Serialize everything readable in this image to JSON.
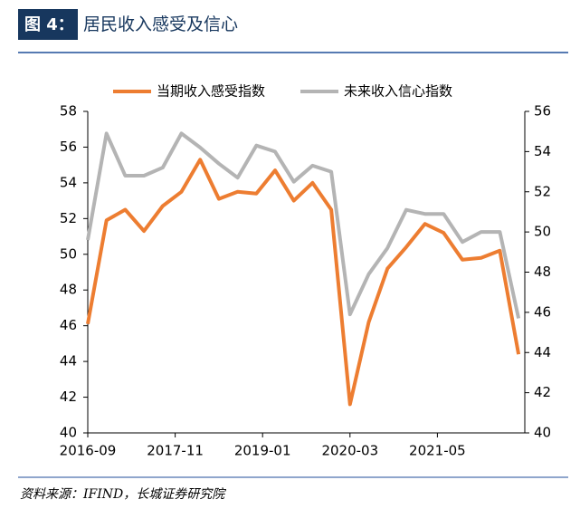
{
  "header": {
    "figure_label": "图 4：",
    "title": "居民收入感受及信心"
  },
  "chart_data": {
    "type": "line",
    "x": [
      "2016-09",
      "2016-12",
      "2017-03",
      "2017-06",
      "2017-09",
      "2017-12",
      "2018-03",
      "2018-06",
      "2018-09",
      "2018-12",
      "2019-03",
      "2019-06",
      "2019-09",
      "2019-12",
      "2020-03",
      "2020-06",
      "2020-09",
      "2020-12",
      "2021-03",
      "2021-06",
      "2021-09",
      "2021-12",
      "2022-03",
      "2022-06"
    ],
    "series": [
      {
        "name": "当期收入感受指数",
        "color": "#ed7d31",
        "axis": "y",
        "values": [
          46.1,
          51.9,
          52.5,
          51.3,
          52.7,
          53.5,
          55.3,
          53.1,
          53.5,
          53.4,
          54.7,
          53.0,
          54.0,
          52.5,
          41.6,
          46.2,
          49.2,
          50.4,
          51.7,
          51.2,
          49.7,
          49.8,
          50.2,
          44.4
        ]
      },
      {
        "name": "未来收入信心指数",
        "color": "#b4b4b4",
        "axis": "y2",
        "values": [
          49.6,
          54.9,
          52.8,
          52.8,
          53.2,
          54.9,
          54.2,
          53.4,
          52.7,
          54.3,
          54.0,
          52.5,
          53.3,
          53.0,
          45.9,
          47.9,
          49.2,
          51.1,
          50.9,
          50.9,
          49.5,
          50.0,
          50.0,
          45.7
        ]
      }
    ],
    "xlim": [
      "2016-09",
      "2022-07"
    ],
    "xticks": [
      "2016-09",
      "2017-11",
      "2019-01",
      "2020-03",
      "2021-05"
    ],
    "ylim": [
      40,
      58
    ],
    "yticks": [
      40,
      42,
      44,
      46,
      48,
      50,
      52,
      54,
      56,
      58
    ],
    "y2lim": [
      40,
      56
    ],
    "y2ticks": [
      40,
      42,
      44,
      46,
      48,
      50,
      52,
      54,
      56
    ],
    "legend": "top"
  },
  "footer": {
    "source": "资料来源：IFIND，长城证券研究院"
  }
}
